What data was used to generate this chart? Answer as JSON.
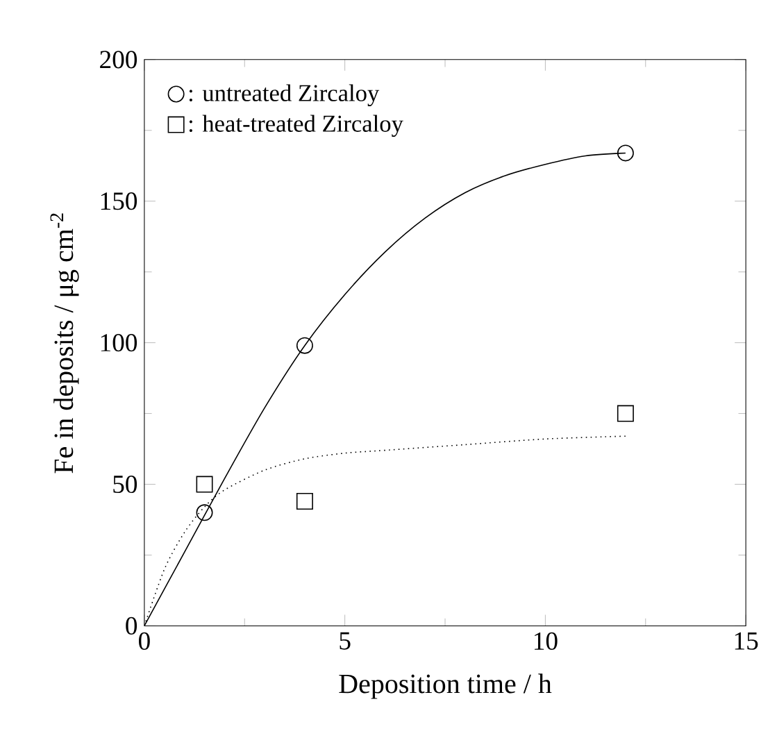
{
  "chart_data": {
    "type": "scatter",
    "xlabel": "Deposition time / h",
    "ylabel": "Fe in deposits / μg cm$^{-2}$",
    "xlim": [
      0,
      15
    ],
    "ylim": [
      0,
      200
    ],
    "xticks": [
      0,
      5,
      10,
      15
    ],
    "yticks": [
      0,
      50,
      100,
      150,
      200
    ],
    "grid": false,
    "legend": "top left",
    "series": [
      {
        "name": ": untreated Zircaloy",
        "color": "#000000",
        "marker": "circle",
        "x": [
          1.5,
          4,
          12
        ],
        "values": [
          40,
          99,
          167
        ]
      },
      {
        "name": ": heat-treated Zircaloy",
        "color": "#000000",
        "marker": "square",
        "x": [
          1.5,
          4,
          12
        ],
        "values": [
          50,
          44,
          75
        ]
      },
      {
        "type": "line",
        "color": "#000000",
        "line_style": "solid",
        "marker": "none",
        "x": [
          0,
          1,
          2,
          3,
          4,
          5,
          6,
          7,
          8,
          9,
          10,
          11,
          12
        ],
        "values": [
          0,
          26,
          52,
          77,
          99,
          117,
          132,
          144,
          153,
          159,
          163,
          166,
          167
        ]
      },
      {
        "type": "line",
        "color": "#000000",
        "line_style": "dotted",
        "marker": "none",
        "x": [
          0,
          0.5,
          1,
          1.5,
          2,
          3,
          4,
          5,
          6,
          8,
          10,
          12
        ],
        "values": [
          0,
          20,
          33,
          42,
          48,
          55,
          59,
          61,
          62,
          64,
          66,
          67
        ]
      }
    ]
  }
}
